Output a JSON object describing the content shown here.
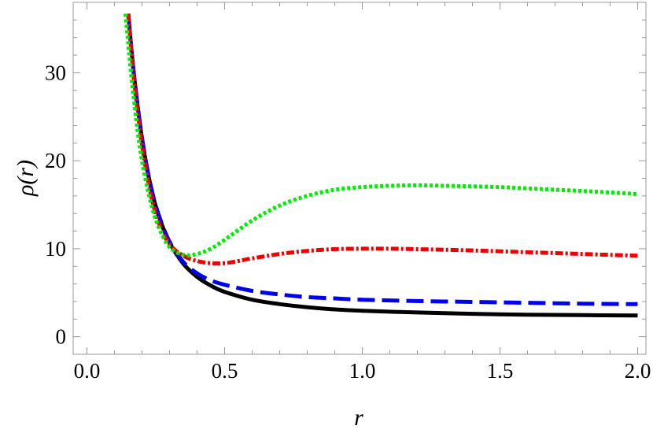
{
  "chart_data": {
    "type": "line",
    "title": "",
    "xlabel": "r",
    "ylabel": "ρ(r)",
    "xlim": [
      -0.05,
      2.03
    ],
    "ylim": [
      -2,
      38
    ],
    "x_ticks": [
      0.0,
      0.5,
      1.0,
      1.5,
      2.0
    ],
    "x_tick_labels": [
      "0.0",
      "0.5",
      "1.0",
      "1.5",
      "2.0"
    ],
    "y_ticks": [
      0,
      10,
      20,
      30
    ],
    "y_tick_labels": [
      "0",
      "10",
      "20",
      "30"
    ],
    "grid": false,
    "legend": "none",
    "series": [
      {
        "style": "solid",
        "color": "#000000",
        "x": [
          0.15,
          0.17,
          0.2,
          0.23,
          0.26,
          0.3,
          0.35,
          0.4,
          0.45,
          0.5,
          0.6,
          0.7,
          0.8,
          0.9,
          1.0,
          1.2,
          1.4,
          1.6,
          1.8,
          2.0
        ],
        "y": [
          36.7,
          30.0,
          22.5,
          17.3,
          13.8,
          10.7,
          8.3,
          6.8,
          5.8,
          5.1,
          4.2,
          3.7,
          3.35,
          3.1,
          2.95,
          2.75,
          2.6,
          2.5,
          2.45,
          2.4
        ]
      },
      {
        "style": "dashed",
        "color": "#0000ee",
        "x": [
          0.15,
          0.17,
          0.2,
          0.23,
          0.26,
          0.3,
          0.35,
          0.4,
          0.45,
          0.5,
          0.6,
          0.7,
          0.8,
          0.9,
          1.0,
          1.2,
          1.4,
          1.6,
          1.8,
          2.0
        ],
        "y": [
          36.7,
          30.0,
          22.6,
          17.4,
          13.9,
          10.8,
          8.5,
          7.2,
          6.4,
          5.9,
          5.2,
          4.8,
          4.5,
          4.35,
          4.2,
          4.05,
          3.95,
          3.85,
          3.75,
          3.7
        ]
      },
      {
        "style": "dash-dot",
        "color": "#ee0000",
        "x": [
          0.15,
          0.17,
          0.2,
          0.23,
          0.26,
          0.3,
          0.35,
          0.4,
          0.45,
          0.5,
          0.55,
          0.6,
          0.7,
          0.8,
          0.9,
          1.0,
          1.1,
          1.2,
          1.4,
          1.6,
          1.8,
          2.0
        ],
        "y": [
          36.7,
          29.5,
          21.8,
          16.5,
          13.0,
          10.5,
          9.2,
          8.6,
          8.35,
          8.35,
          8.6,
          8.9,
          9.4,
          9.75,
          9.95,
          10.0,
          10.0,
          9.95,
          9.8,
          9.6,
          9.4,
          9.2
        ]
      },
      {
        "style": "dotted",
        "color": "#00ee00",
        "x": [
          0.14,
          0.16,
          0.18,
          0.2,
          0.23,
          0.26,
          0.3,
          0.35,
          0.4,
          0.45,
          0.5,
          0.6,
          0.7,
          0.8,
          0.9,
          1.0,
          1.1,
          1.2,
          1.3,
          1.5,
          1.7,
          1.9,
          2.0
        ],
        "y": [
          36.7,
          30.0,
          24.5,
          20.0,
          15.5,
          12.5,
          10.2,
          9.3,
          9.4,
          10.0,
          11.0,
          13.2,
          14.9,
          16.0,
          16.7,
          17.0,
          17.15,
          17.2,
          17.15,
          17.0,
          16.7,
          16.4,
          16.2
        ]
      }
    ]
  }
}
